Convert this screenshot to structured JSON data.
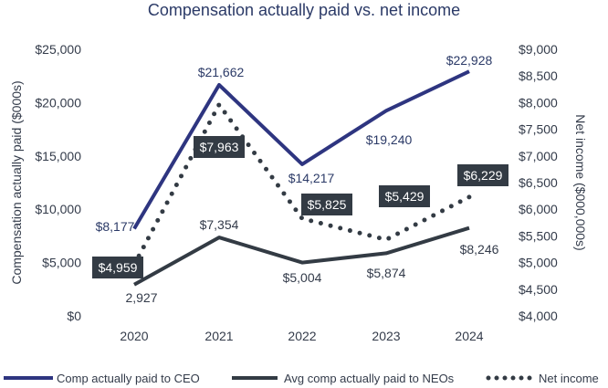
{
  "chart_data": {
    "type": "line",
    "title": "Compensation actually paid vs. net income",
    "categories": [
      "2020",
      "2021",
      "2022",
      "2023",
      "2024"
    ],
    "ylabel": "Compensation actually paid ($000s)",
    "y2label": "Net income ($000,000s)",
    "ylim": [
      0,
      25000
    ],
    "y2lim": [
      4000,
      9000
    ],
    "yticks": [
      "$0",
      "$5,000",
      "$10,000",
      "$15,000",
      "$20,000",
      "$25,000"
    ],
    "y2ticks": [
      "$4,000",
      "$4,500",
      "$5,000",
      "$5,500",
      "$6,000",
      "$6,500",
      "$7,000",
      "$7,500",
      "$8,000",
      "$8,500",
      "$9,000"
    ],
    "grid": false,
    "legend_position": "bottom",
    "series": [
      {
        "name": "Comp actually paid to CEO",
        "axis": "left",
        "style": "solid",
        "color": "#2e3580",
        "values": [
          8177,
          21662,
          14217,
          19240,
          22928
        ],
        "labels": [
          "$8,177",
          "$21,662",
          "$14,217",
          "$19,240",
          "$22,928"
        ]
      },
      {
        "name": "Avg comp actually paid to NEOs",
        "axis": "left",
        "style": "solid",
        "color": "#333b44",
        "values": [
          2927,
          7354,
          5004,
          5874,
          8246
        ],
        "labels": [
          "2,927",
          "$7,354",
          "$5,004",
          "$5,874",
          "$8,246"
        ]
      },
      {
        "name": "Net income",
        "axis": "right",
        "style": "dotted",
        "color": "#333b44",
        "values": [
          4959,
          7963,
          5825,
          5429,
          6229
        ],
        "labels": [
          "$4,959",
          "$7,963",
          "$5,825",
          "$5,429",
          "$6,229"
        ]
      }
    ]
  }
}
